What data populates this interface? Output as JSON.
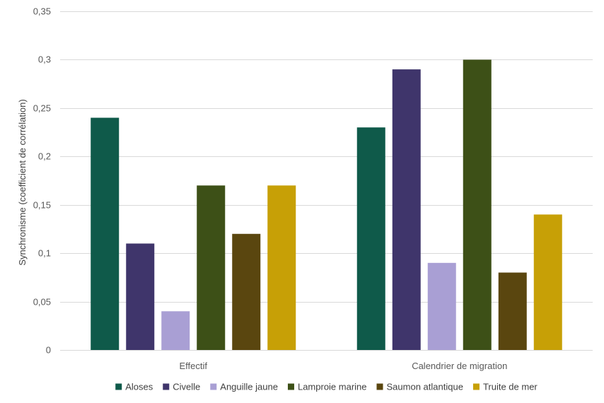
{
  "chart_data": {
    "type": "bar",
    "title": "",
    "xlabel": "",
    "ylabel": "Synchronisme (coefficient de corrélation)",
    "categories": [
      "Effectif",
      "Calendrier de migration"
    ],
    "ylim": [
      0,
      0.35
    ],
    "yticks": [
      0,
      0.05,
      0.1,
      0.15,
      0.2,
      0.25,
      0.3,
      0.35
    ],
    "ytick_labels": [
      "0",
      "0,05",
      "0,1",
      "0,15",
      "0,2",
      "0,25",
      "0,3",
      "0,35"
    ],
    "grid": true,
    "legend_position": "bottom",
    "series": [
      {
        "name": "Aloses",
        "color": "#0f5a4a",
        "values": [
          0.24,
          0.23
        ]
      },
      {
        "name": "Civelle",
        "color": "#3f356b",
        "values": [
          0.11,
          0.29
        ]
      },
      {
        "name": "Anguille jaune",
        "color": "#a99fd4",
        "values": [
          0.04,
          0.09
        ]
      },
      {
        "name": "Lamproie marine",
        "color": "#3d5017",
        "values": [
          0.17,
          0.3
        ]
      },
      {
        "name": "Saumon atlantique",
        "color": "#5a460f",
        "values": [
          0.12,
          0.08
        ]
      },
      {
        "name": "Truite de mer",
        "color": "#c7a006",
        "values": [
          0.17,
          0.14
        ]
      }
    ]
  }
}
